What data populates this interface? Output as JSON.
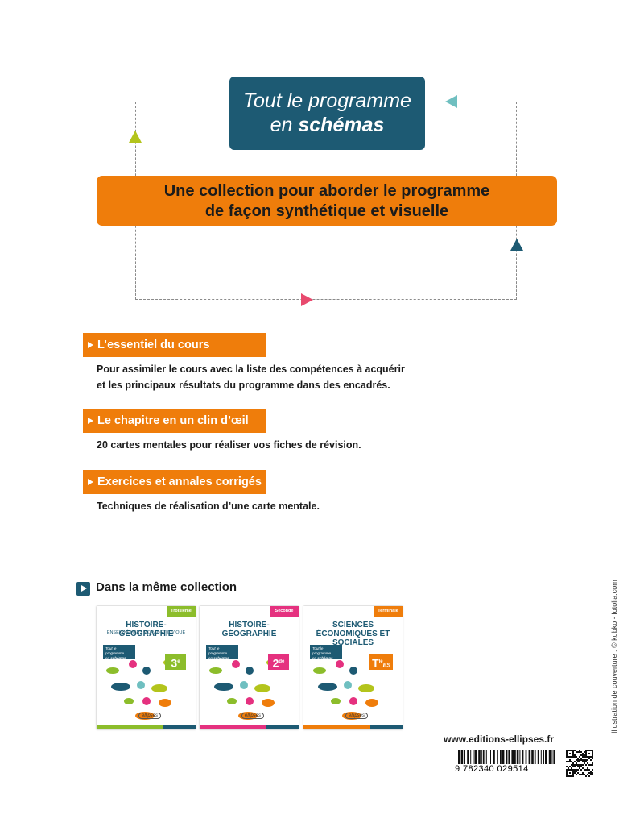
{
  "header": {
    "line1": "Tout le programme",
    "line2_prefix": "en",
    "line2_emphasis": "schémas"
  },
  "banner": {
    "lines": [
      "Une collection pour aborder le programme",
      "de façon synthétique et visuelle"
    ]
  },
  "sections": [
    {
      "title": "L’essentiel du cours",
      "lines": [
        "Pour assimiler le cours avec la liste des compétences à acquérir",
        "et les principaux résultats du programme dans des encadrés."
      ]
    },
    {
      "title": "Le chapitre en un clin d’œil",
      "lines": [
        "20 cartes mentales pour réaliser vos fiches de révision."
      ]
    },
    {
      "title": "Exercices et annales corrigés",
      "lines": [
        "Techniques de réalisation d’une carte mentale."
      ]
    }
  ],
  "collection": {
    "heading": "Dans la même collection",
    "publisher": "ellipses",
    "books": [
      {
        "level": "Troisième",
        "title": "HISTOIRE-GÉOGRAPHIE",
        "subtitle": "ENSEIGNEMENT MORAL ET CIVIQUE",
        "grade": "3",
        "grade_sup": "e"
      },
      {
        "level": "Seconde",
        "title": "HISTOIRE-GÉOGRAPHIE",
        "grade": "2",
        "grade_sup": "de"
      },
      {
        "level": "Terminale",
        "title": "SCIENCES ÉCONOMIQUES ET SOCIALES",
        "grade": "T",
        "grade_sup": "le",
        "track": "ES"
      }
    ]
  },
  "footer": {
    "website": "www.editions-ellipses.fr",
    "isbn": "9 782340 029514",
    "credit": "Illustration de couverture : © kubko - fotolia.com"
  }
}
